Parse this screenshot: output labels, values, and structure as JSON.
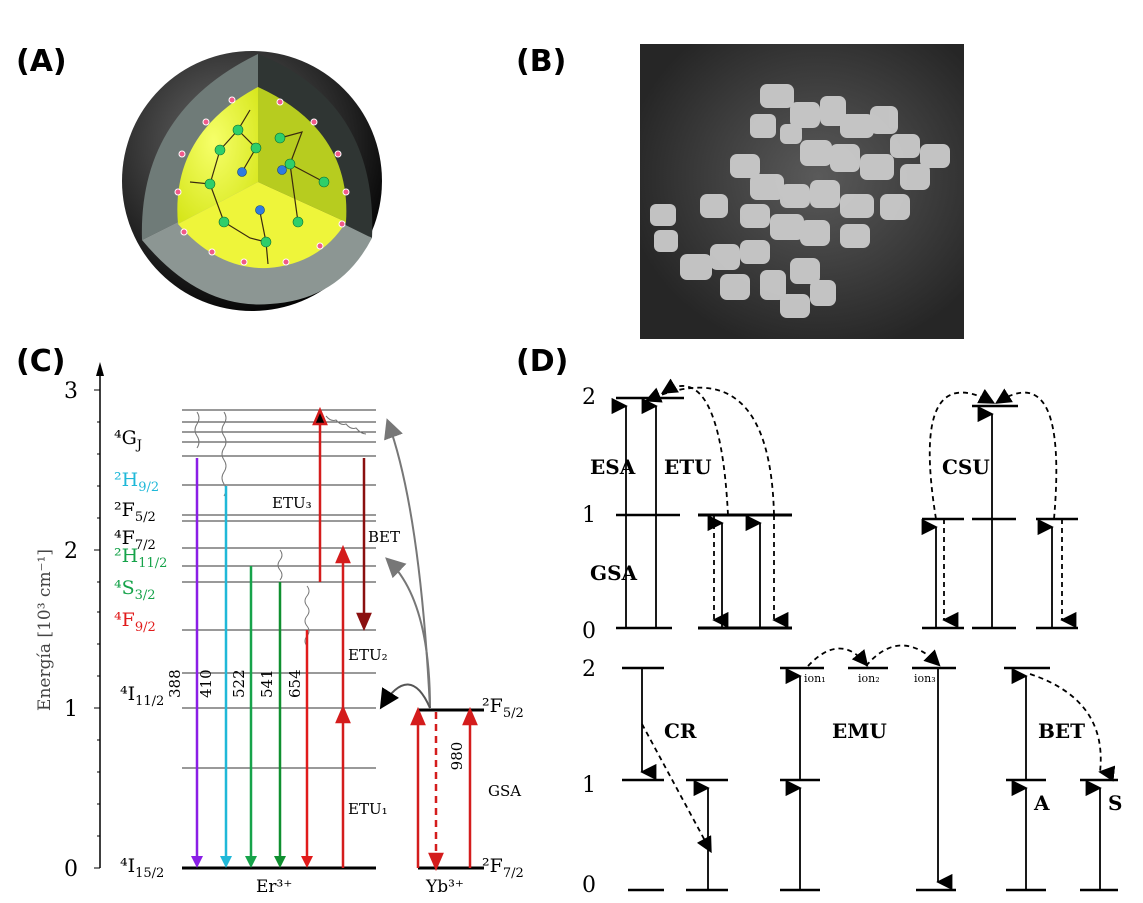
{
  "panels": {
    "a": "(A)",
    "b": "(B)",
    "c": "(C)",
    "d": "(D)"
  },
  "panel_c": {
    "y_axis_label": "Energía [10³ cm⁻¹]",
    "y_ticks": [
      "0",
      "1",
      "2",
      "3"
    ],
    "er_levels": [
      {
        "id": "4GJ",
        "text": "⁴G",
        "sub": "J",
        "color": "#000000"
      },
      {
        "id": "2H9",
        "text": "²H",
        "sub": "9/2",
        "color": "#1fb8d8"
      },
      {
        "id": "2F5",
        "text": "²F",
        "sub": "5/2",
        "color": "#000000"
      },
      {
        "id": "4F7",
        "text": "⁴F",
        "sub": "7/2",
        "color": "#000000"
      },
      {
        "id": "2H11",
        "text": "²H",
        "sub": "11/2",
        "color": "#16a34a"
      },
      {
        "id": "4S3",
        "text": "⁴S",
        "sub": "3/2",
        "color": "#16a34a"
      },
      {
        "id": "4F9",
        "text": "⁴F",
        "sub": "9/2",
        "color": "#e11b1b"
      },
      {
        "id": "4I11",
        "text": "⁴I",
        "sub": "11/2",
        "color": "#000000"
      },
      {
        "id": "4I15",
        "text": "⁴I",
        "sub": "15/2",
        "color": "#000000"
      }
    ],
    "emissions": [
      {
        "nm": "388",
        "color": "#8a1ee6"
      },
      {
        "nm": "410",
        "color": "#1fb8d8"
      },
      {
        "nm": "522",
        "color": "#16a34a"
      },
      {
        "nm": "541",
        "color": "#0f8f2f"
      },
      {
        "nm": "654",
        "color": "#e11b1b"
      }
    ],
    "process_labels": {
      "etu1": "ETU₁",
      "etu2": "ETU₂",
      "etu3": "ETU₃",
      "bet": "BET",
      "gsa": "GSA"
    },
    "er_ion": "Er³⁺",
    "yb_ion": "Yb³⁺",
    "yb_levels": {
      "upper": "²F",
      "upper_sub": "5/2",
      "lower": "²F",
      "lower_sub": "7/2"
    },
    "yb_wavelength": "980"
  },
  "panel_d": {
    "level_ticks": [
      "0",
      "1",
      "2"
    ],
    "processes": {
      "esa": "ESA",
      "etu": "ETU",
      "gsa": "GSA",
      "csu": "CSU",
      "cr": "CR",
      "emu": "EMU",
      "bet": "BET"
    },
    "ions": [
      "ion₁",
      "ion₂",
      "ion₃"
    ],
    "bet_states": {
      "a": "A",
      "s": "S"
    }
  }
}
